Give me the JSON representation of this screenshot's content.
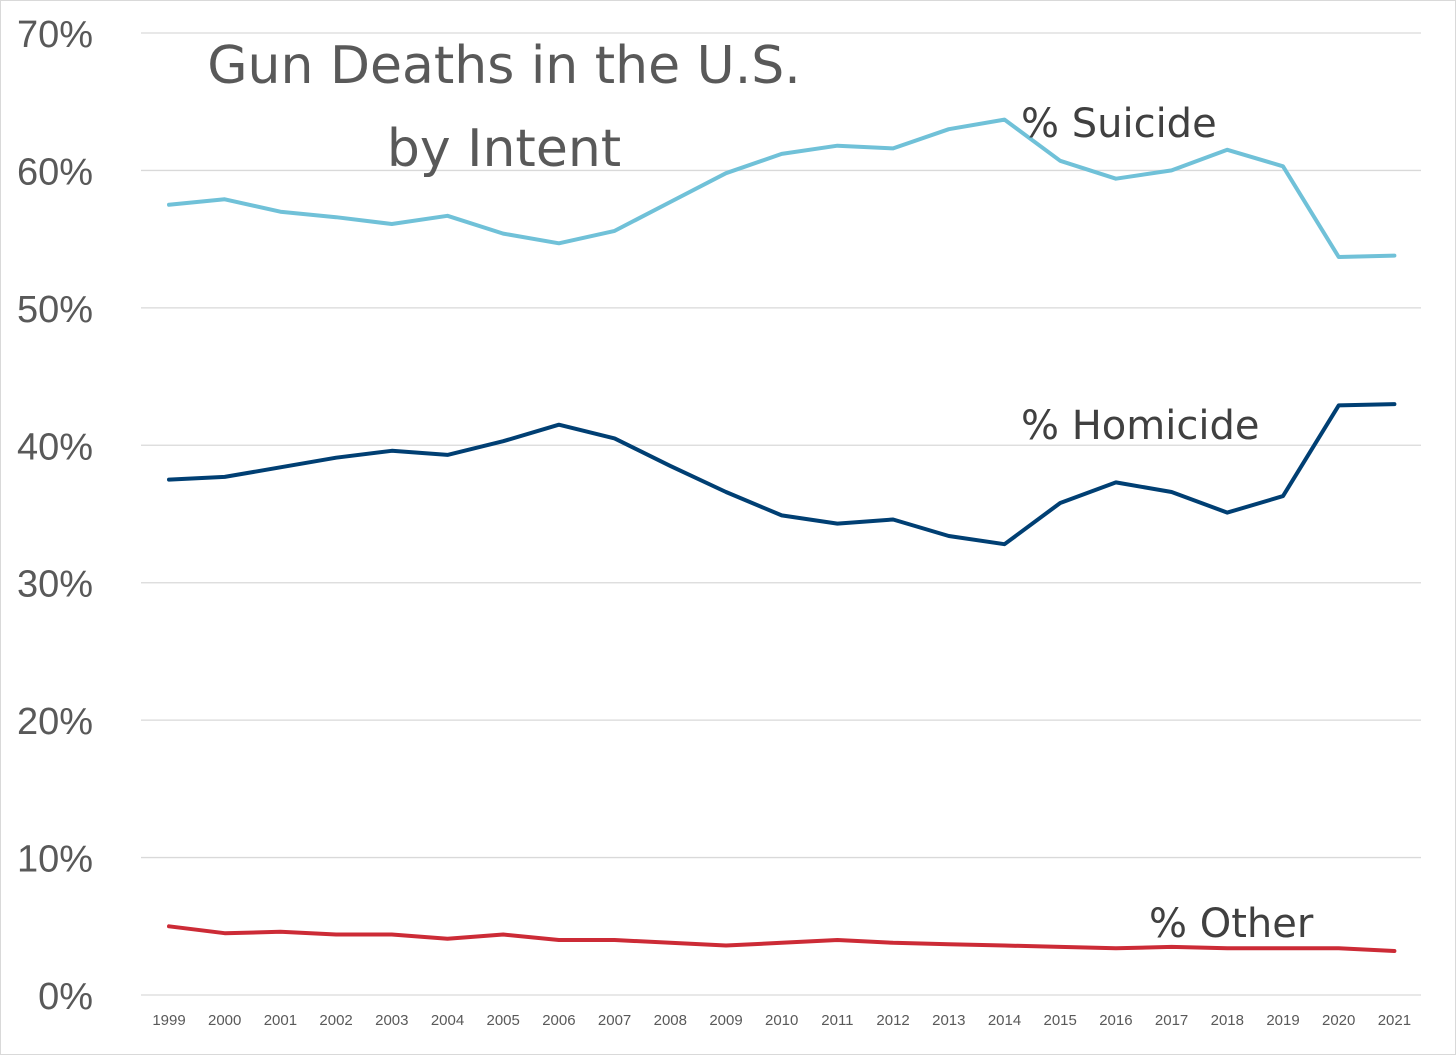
{
  "chart_data": {
    "type": "line",
    "title": [
      "Gun Deaths in the U.S.",
      "by Intent"
    ],
    "xlabel": "",
    "ylabel": "",
    "x": [
      1999,
      2000,
      2001,
      2002,
      2003,
      2004,
      2005,
      2006,
      2007,
      2008,
      2009,
      2010,
      2011,
      2012,
      2013,
      2014,
      2015,
      2016,
      2017,
      2018,
      2019,
      2020,
      2021
    ],
    "ylim": [
      0,
      70
    ],
    "yticks": [
      "0%",
      "10%",
      "20%",
      "30%",
      "40%",
      "50%",
      "60%",
      "70%"
    ],
    "grid": true,
    "legend": "inline labels",
    "series": [
      {
        "name": "% Suicide",
        "color": "#70c1d8",
        "values": [
          57.5,
          57.9,
          57.0,
          56.6,
          56.1,
          56.7,
          55.4,
          54.7,
          55.6,
          57.7,
          59.8,
          61.2,
          61.8,
          61.6,
          63.0,
          63.7,
          60.7,
          59.4,
          60.0,
          61.5,
          60.3,
          53.7,
          53.8
        ]
      },
      {
        "name": "% Homicide",
        "color": "#003f73",
        "values": [
          37.5,
          37.7,
          38.4,
          39.1,
          39.6,
          39.3,
          40.3,
          41.5,
          40.5,
          38.5,
          36.6,
          34.9,
          34.3,
          34.6,
          33.4,
          32.8,
          35.8,
          37.3,
          36.6,
          35.1,
          36.3,
          42.9,
          43.0
        ]
      },
      {
        "name": "% Other",
        "color": "#cc2b36",
        "values": [
          5.0,
          4.5,
          4.6,
          4.4,
          4.4,
          4.1,
          4.4,
          4.0,
          4.0,
          3.8,
          3.6,
          3.8,
          4.0,
          3.8,
          3.7,
          3.6,
          3.5,
          3.4,
          3.5,
          3.4,
          3.4,
          3.4,
          3.2
        ]
      }
    ]
  }
}
